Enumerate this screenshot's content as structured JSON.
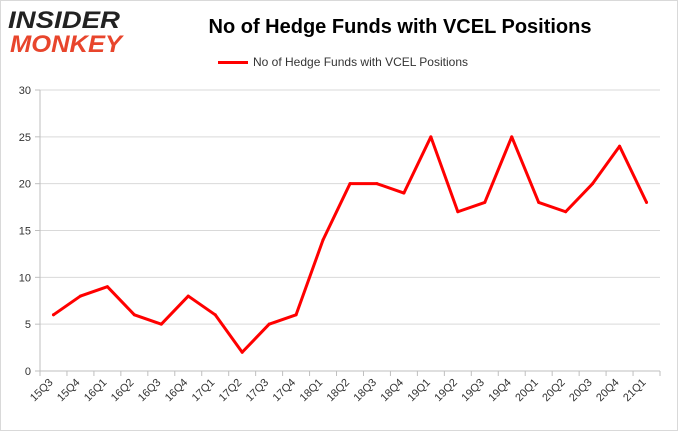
{
  "header": {
    "logo_line1": "INSIDER",
    "logo_line2": "MONKEY"
  },
  "chart_data": {
    "type": "line",
    "title": "No of Hedge Funds with VCEL Positions",
    "xlabel": "",
    "ylabel": "",
    "categories": [
      "15Q3",
      "15Q4",
      "16Q1",
      "16Q2",
      "16Q3",
      "16Q4",
      "17Q1",
      "17Q2",
      "17Q3",
      "17Q4",
      "18Q1",
      "18Q2",
      "18Q3",
      "18Q4",
      "19Q1",
      "19Q2",
      "19Q3",
      "19Q4",
      "20Q1",
      "20Q2",
      "20Q3",
      "20Q4",
      "21Q1"
    ],
    "series": [
      {
        "name": "No of Hedge Funds with VCEL Positions",
        "color": "#ff0000",
        "values": [
          6,
          8,
          9,
          6,
          5,
          8,
          6,
          2,
          5,
          6,
          14,
          20,
          20,
          19,
          25,
          17,
          18,
          25,
          18,
          17,
          20,
          24,
          18
        ]
      }
    ],
    "ylim": [
      0,
      30
    ],
    "yticks": [
      0,
      5,
      10,
      15,
      20,
      25,
      30
    ],
    "grid": true,
    "legend_position": "top-center"
  },
  "colors": {
    "line": "#ff0000",
    "grid": "#d9d9d9",
    "logo_dark": "#222222",
    "logo_accent": "#e8452c"
  }
}
